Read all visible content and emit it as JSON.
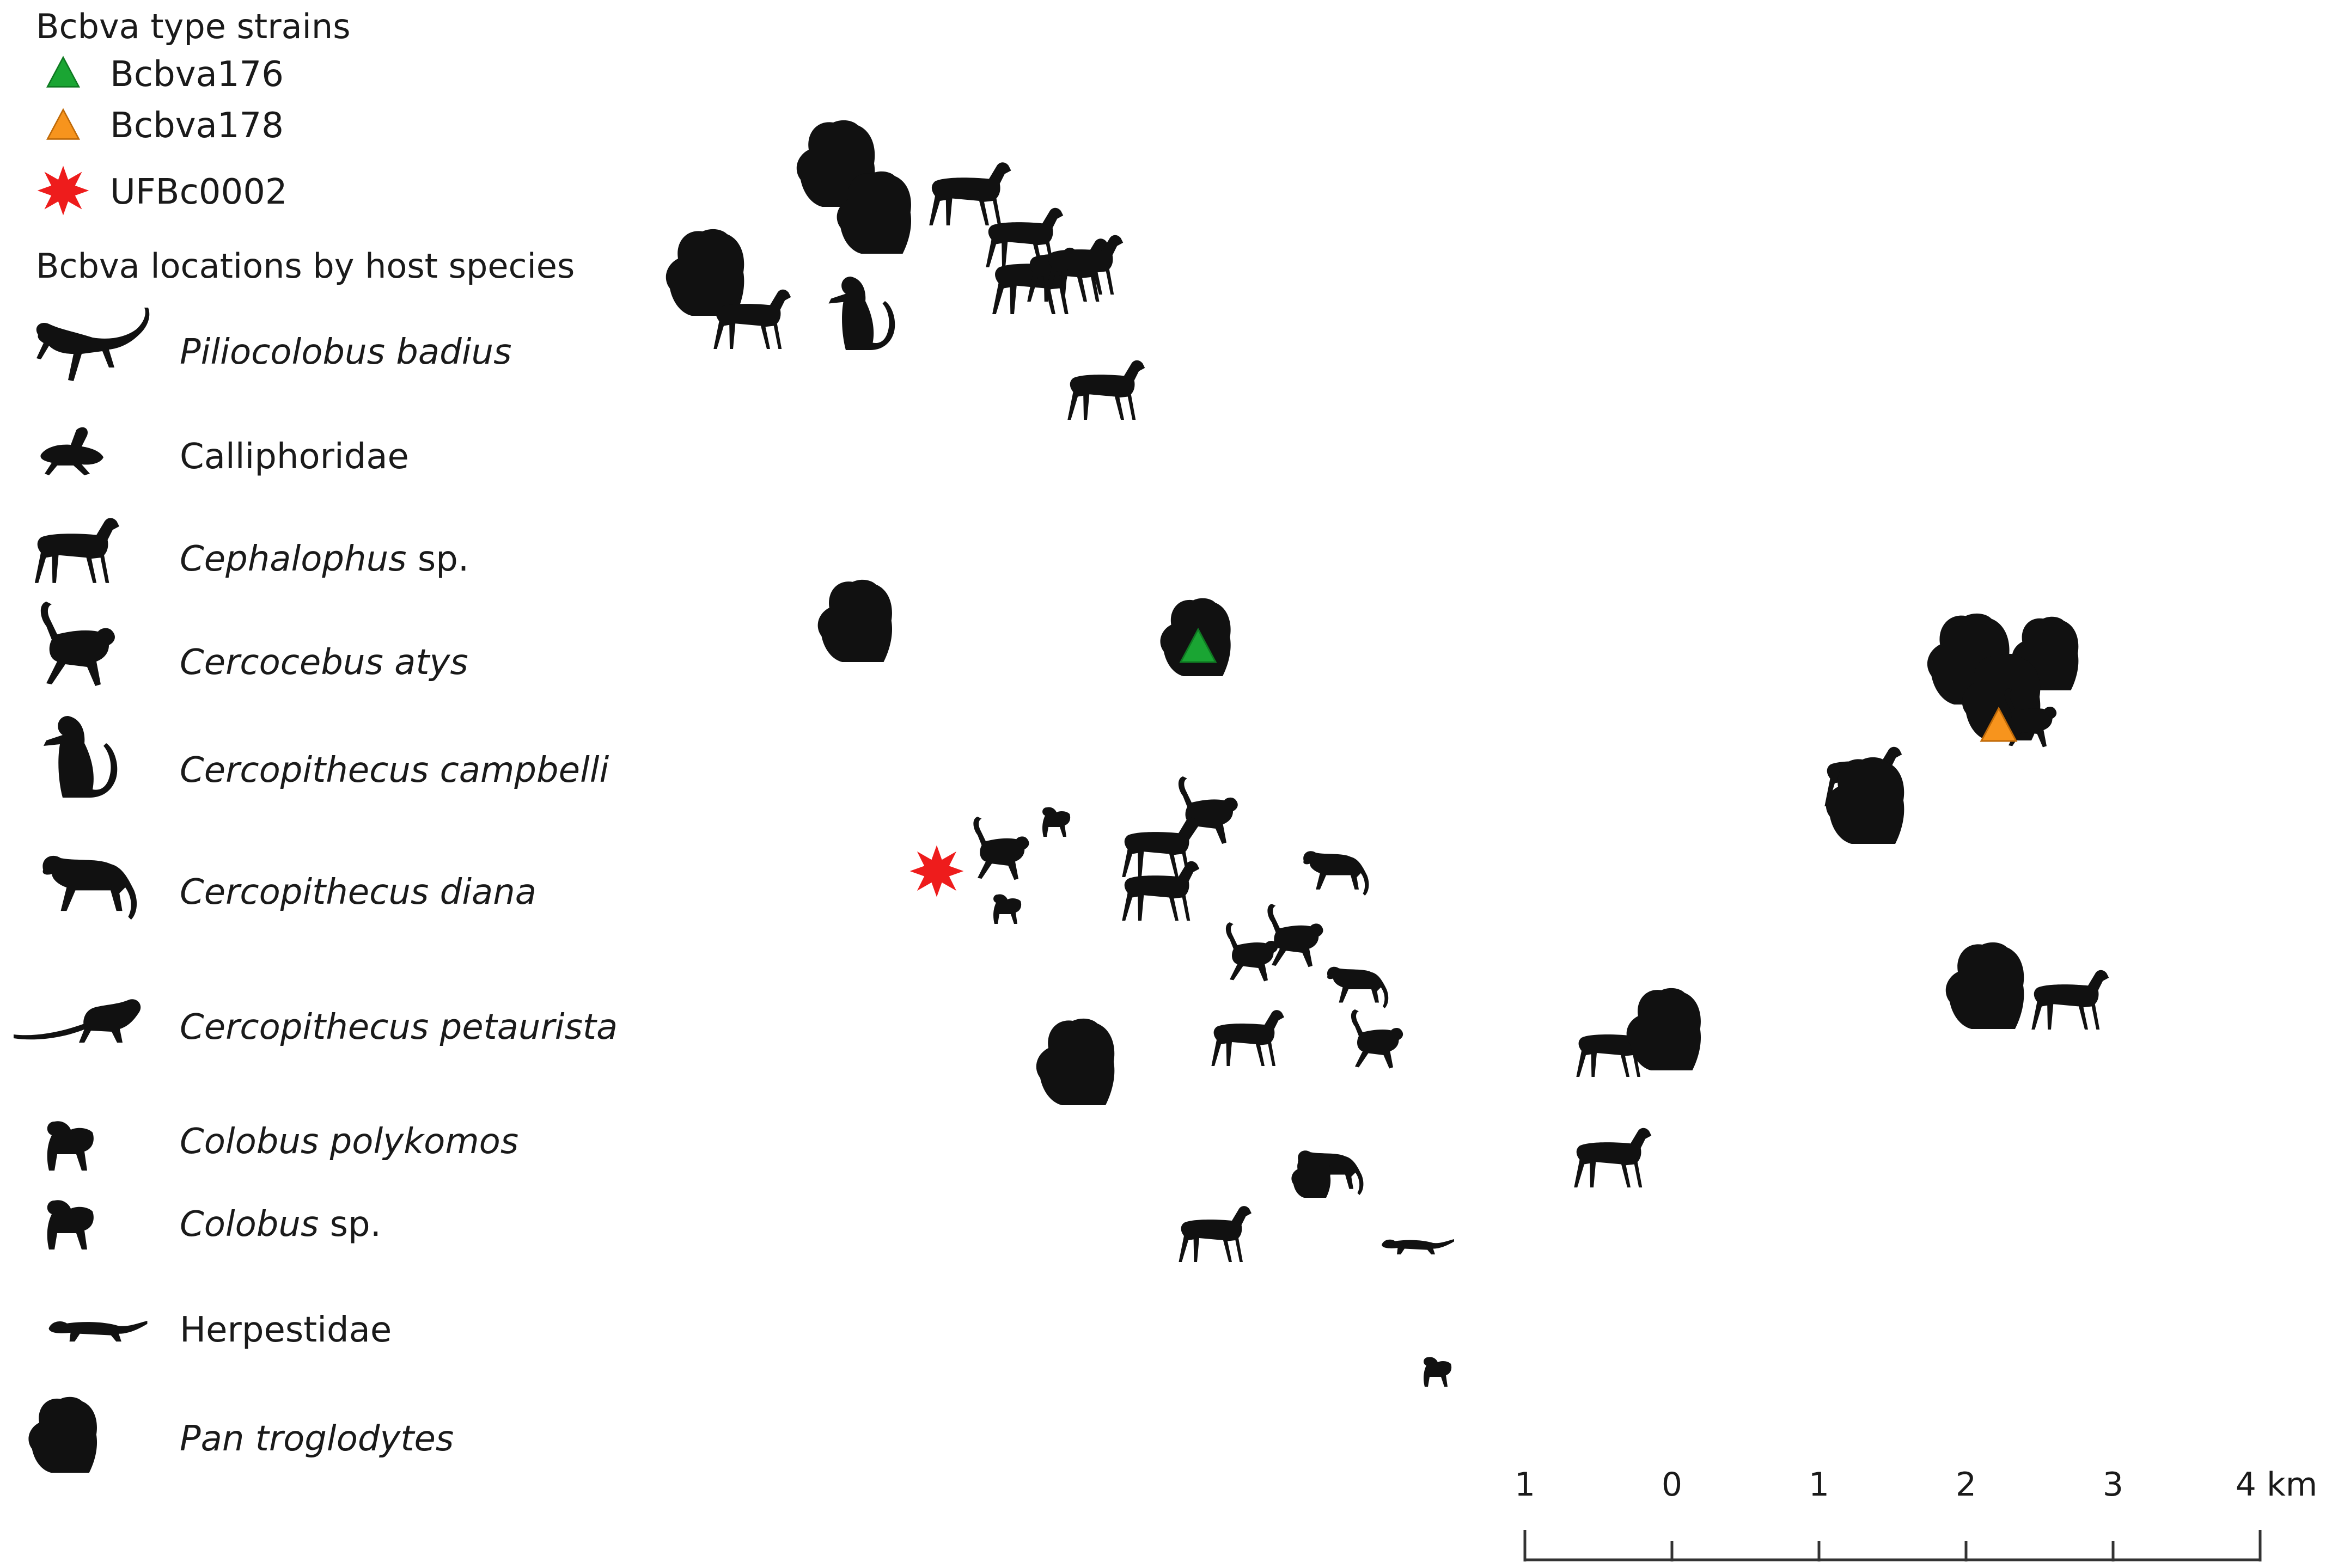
{
  "legend": {
    "strains_heading": "Bcbva type strains",
    "strains": [
      {
        "label": "Bcbva176",
        "symbol": "triangle",
        "color": "#1aa533"
      },
      {
        "label": "Bcbva178",
        "symbol": "triangle",
        "color": "#f7941d"
      },
      {
        "label": "UFBc0002",
        "symbol": "star",
        "color": "#ee1c1c"
      }
    ],
    "hosts_heading": "Bcbva locations by host species",
    "hosts": [
      {
        "name": "Piliocolobus badius",
        "suffix": "",
        "italic": true,
        "icon": "piliocolobus-icon"
      },
      {
        "name": "Calliphoridae",
        "suffix": "",
        "italic": false,
        "icon": "fly-icon"
      },
      {
        "name": "Cephalophus",
        "suffix": " sp.",
        "italic": true,
        "icon": "duiker-icon"
      },
      {
        "name": "Cercocebus atys",
        "suffix": "",
        "italic": true,
        "icon": "mangabey-icon"
      },
      {
        "name": "Cercopithecus campbelli",
        "suffix": "",
        "italic": true,
        "icon": "campbell-monkey-icon"
      },
      {
        "name": "Cercopithecus diana",
        "suffix": "",
        "italic": true,
        "icon": "diana-monkey-icon"
      },
      {
        "name": "Cercopithecus petaurista",
        "suffix": "",
        "italic": true,
        "icon": "petaurista-icon"
      },
      {
        "name": "Colobus polykomos",
        "suffix": "",
        "italic": true,
        "icon": "colobus-polykomos-icon"
      },
      {
        "name": "Colobus",
        "suffix": " sp.",
        "italic": true,
        "icon": "colobus-icon"
      },
      {
        "name": "Herpestidae",
        "suffix": "",
        "italic": false,
        "icon": "mongoose-icon"
      },
      {
        "name": "Pan troglodytes",
        "suffix": "",
        "italic": true,
        "icon": "chimpanzee-icon"
      }
    ]
  },
  "scale_bar": {
    "tick_labels": [
      "1",
      "0",
      "1",
      "2",
      "3",
      "4 km"
    ]
  },
  "colors": {
    "silhouette": "#111111",
    "text": "#1a1a1a"
  }
}
